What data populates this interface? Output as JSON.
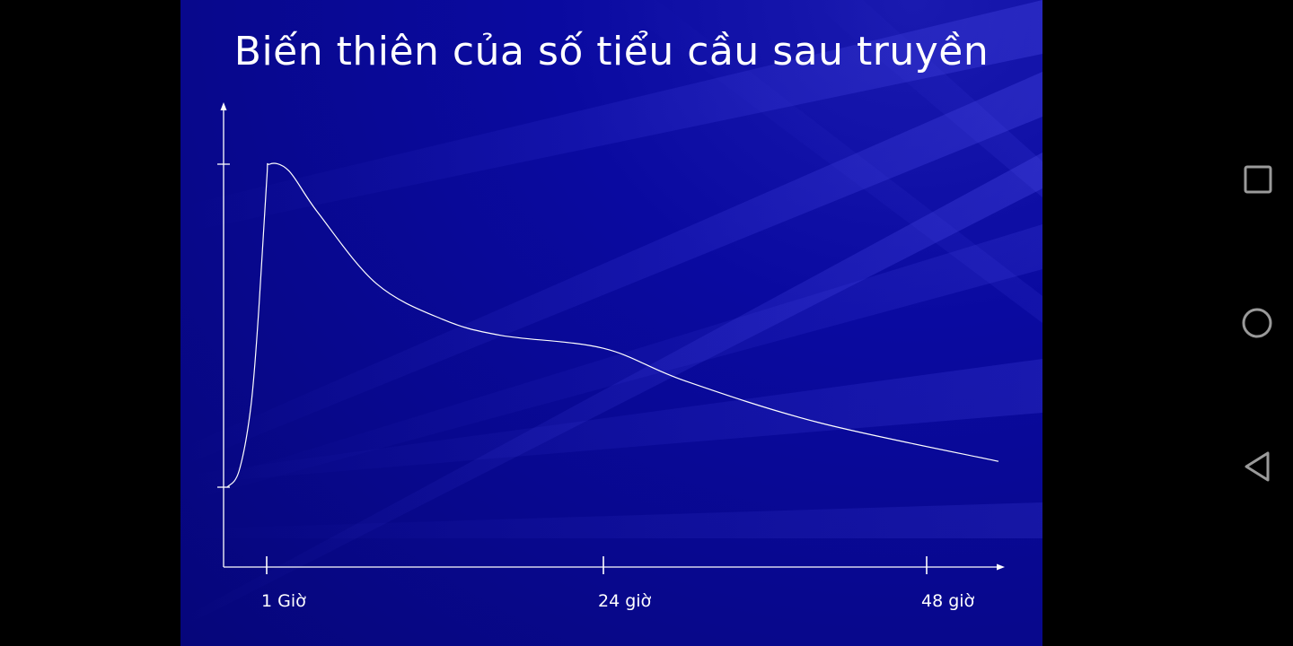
{
  "slide": {
    "title": "Biến thiên của số tiểu cầu sau truyền"
  },
  "chart_data": {
    "type": "line",
    "title": "Biến thiên của số tiểu cầu sau truyền",
    "xlabel": "",
    "ylabel": "",
    "x_ticks": [
      "1 Giờ",
      "24 giờ",
      "48 giờ"
    ],
    "y_ticks": [
      "",
      ""
    ],
    "series": [
      {
        "values_note": "",
        "points": [
          [
            0,
            0.0
          ],
          [
            0.3,
            0.05
          ],
          [
            0.6,
            0.25
          ],
          [
            0.8,
            0.55
          ],
          [
            1.0,
            0.95
          ],
          [
            1.2,
            1.0
          ],
          [
            2.5,
            0.98
          ],
          [
            4.5,
            0.85
          ],
          [
            8.5,
            0.63
          ],
          [
            13,
            0.52
          ],
          [
            17,
            0.47
          ],
          [
            24,
            0.43
          ],
          [
            30,
            0.33
          ],
          [
            40,
            0.2
          ],
          [
            50,
            0.08
          ]
        ]
      }
    ],
    "grid": false,
    "legend": "none",
    "line_color": "#ffffff"
  },
  "nav": {
    "recents": "square-icon",
    "home": "circle-icon",
    "back": "triangle-back-icon",
    "color": "#9a9a9a"
  }
}
